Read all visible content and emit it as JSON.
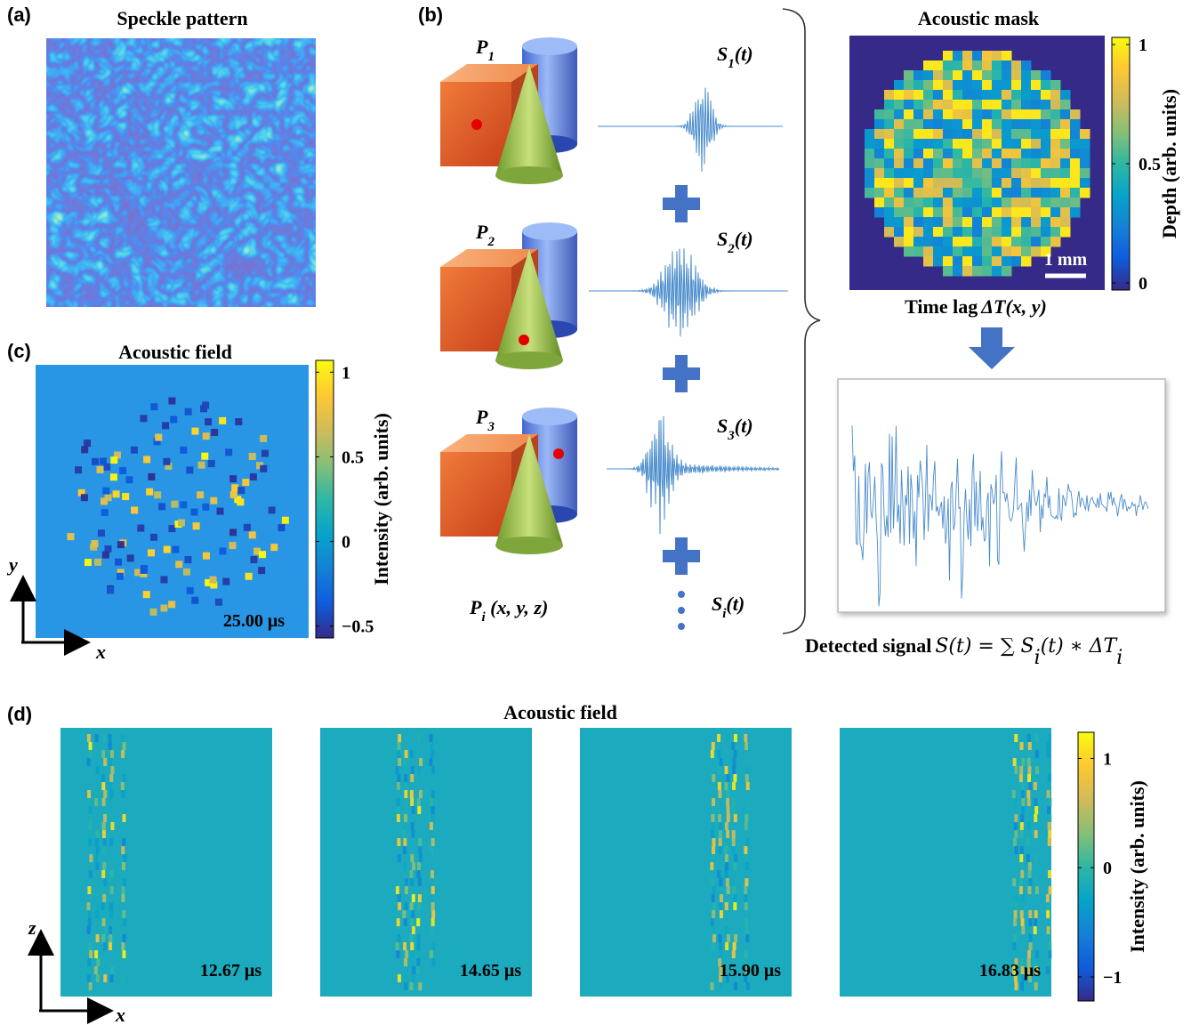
{
  "panels": {
    "a": {
      "label": "(a)",
      "title": "Speckle pattern"
    },
    "b": {
      "label": "(b)",
      "points": [
        {
          "base": "P",
          "sub": "1"
        },
        {
          "base": "P",
          "sub": "2"
        },
        {
          "base": "P",
          "sub": "3"
        }
      ],
      "point_general": {
        "base": "P",
        "sub": "i",
        "rest": " (x, y, z)"
      },
      "signals": [
        {
          "base": "S",
          "sub": "1",
          "rest": "(t)"
        },
        {
          "base": "S",
          "sub": "2",
          "rest": "(t)"
        },
        {
          "base": "S",
          "sub": "3",
          "rest": "(t)"
        }
      ],
      "signal_general": {
        "base": "S",
        "sub": "i",
        "rest": "(t)"
      },
      "mask": {
        "title": "Acoustic mask",
        "scale_bar": "1 mm",
        "caption_prefix": "Time lag",
        "caption_math": "ΔT(x, y)",
        "colorbar": {
          "label": "Depth (arb. units)",
          "clim": [
            -0.03,
            1.03
          ],
          "ticks": [
            1,
            0.5,
            0
          ]
        }
      },
      "detected": {
        "prefix": "Detected signal",
        "math": "S(t) = ∑ S",
        "sub": "i",
        "math2": "(t) ∗ ΔT",
        "sub2": "i"
      }
    },
    "c": {
      "label": "(c)",
      "title": "Acoustic field",
      "time": "25.00 μs",
      "axis_x": "x",
      "axis_y": "y",
      "colorbar": {
        "label": "Intensity (arb. units)",
        "clim": [
          -0.57,
          1.07
        ],
        "ticks": [
          1,
          0.5,
          0,
          {
            "value": -0.5,
            "label": "−0.5"
          }
        ]
      }
    },
    "d": {
      "label": "(d)",
      "title": "Acoustic field",
      "times": [
        "12.67 μs",
        "14.65 μs",
        "15.90 μs",
        "16.83 μs"
      ],
      "axis_x": "x",
      "axis_z": "z",
      "colorbar": {
        "label": "Intensity (arb. units)",
        "clim": [
          -1.22,
          1.24
        ],
        "ticks": [
          1,
          0,
          {
            "value": -1,
            "label": "−1"
          }
        ]
      }
    }
  }
}
